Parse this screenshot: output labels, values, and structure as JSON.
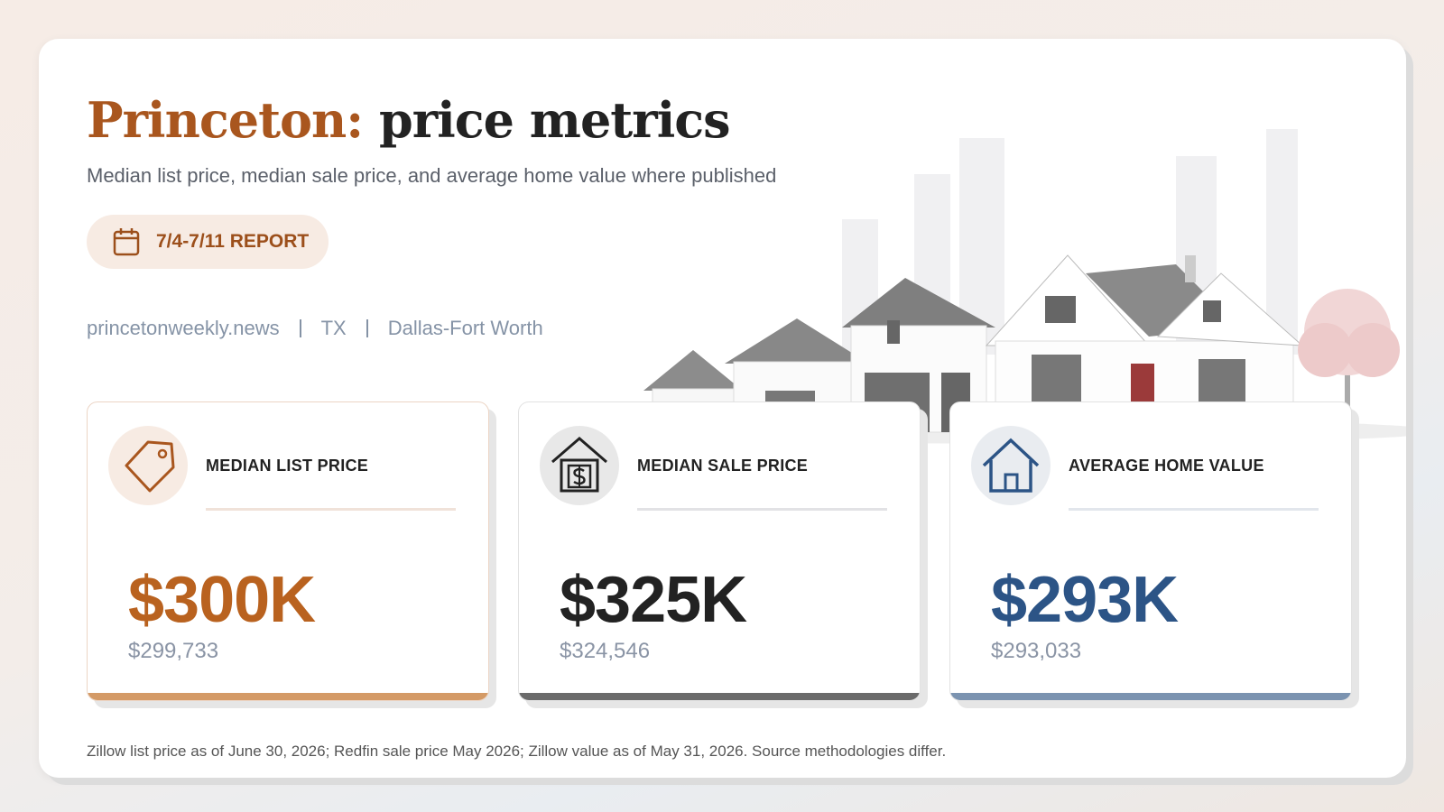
{
  "header": {
    "title_place": "Princeton:",
    "title_rest": "price metrics",
    "subtitle": "Median list price, median sale price, and average home value where published",
    "badge": "7/4-7/11 REPORT",
    "meta": [
      "princetonweekly.news",
      "TX",
      "Dallas-Fort Worth"
    ]
  },
  "cards": [
    {
      "label": "MEDIAN LIST PRICE",
      "value": "$300K",
      "exact": "$299,733",
      "color": "#b9621f",
      "accent": "#d49a66"
    },
    {
      "label": "MEDIAN SALE PRICE",
      "value": "$325K",
      "exact": "$324,546",
      "color": "#222222",
      "accent": "#6b6b6b"
    },
    {
      "label": "AVERAGE HOME VALUE",
      "value": "$293K",
      "exact": "$293,033",
      "color": "#2c5486",
      "accent": "#7b93b0"
    }
  ],
  "footnote": "Zillow list price as of June 30, 2026; Redfin sale price May 2026; Zillow value as of May 31, 2026. Source methodologies differ."
}
